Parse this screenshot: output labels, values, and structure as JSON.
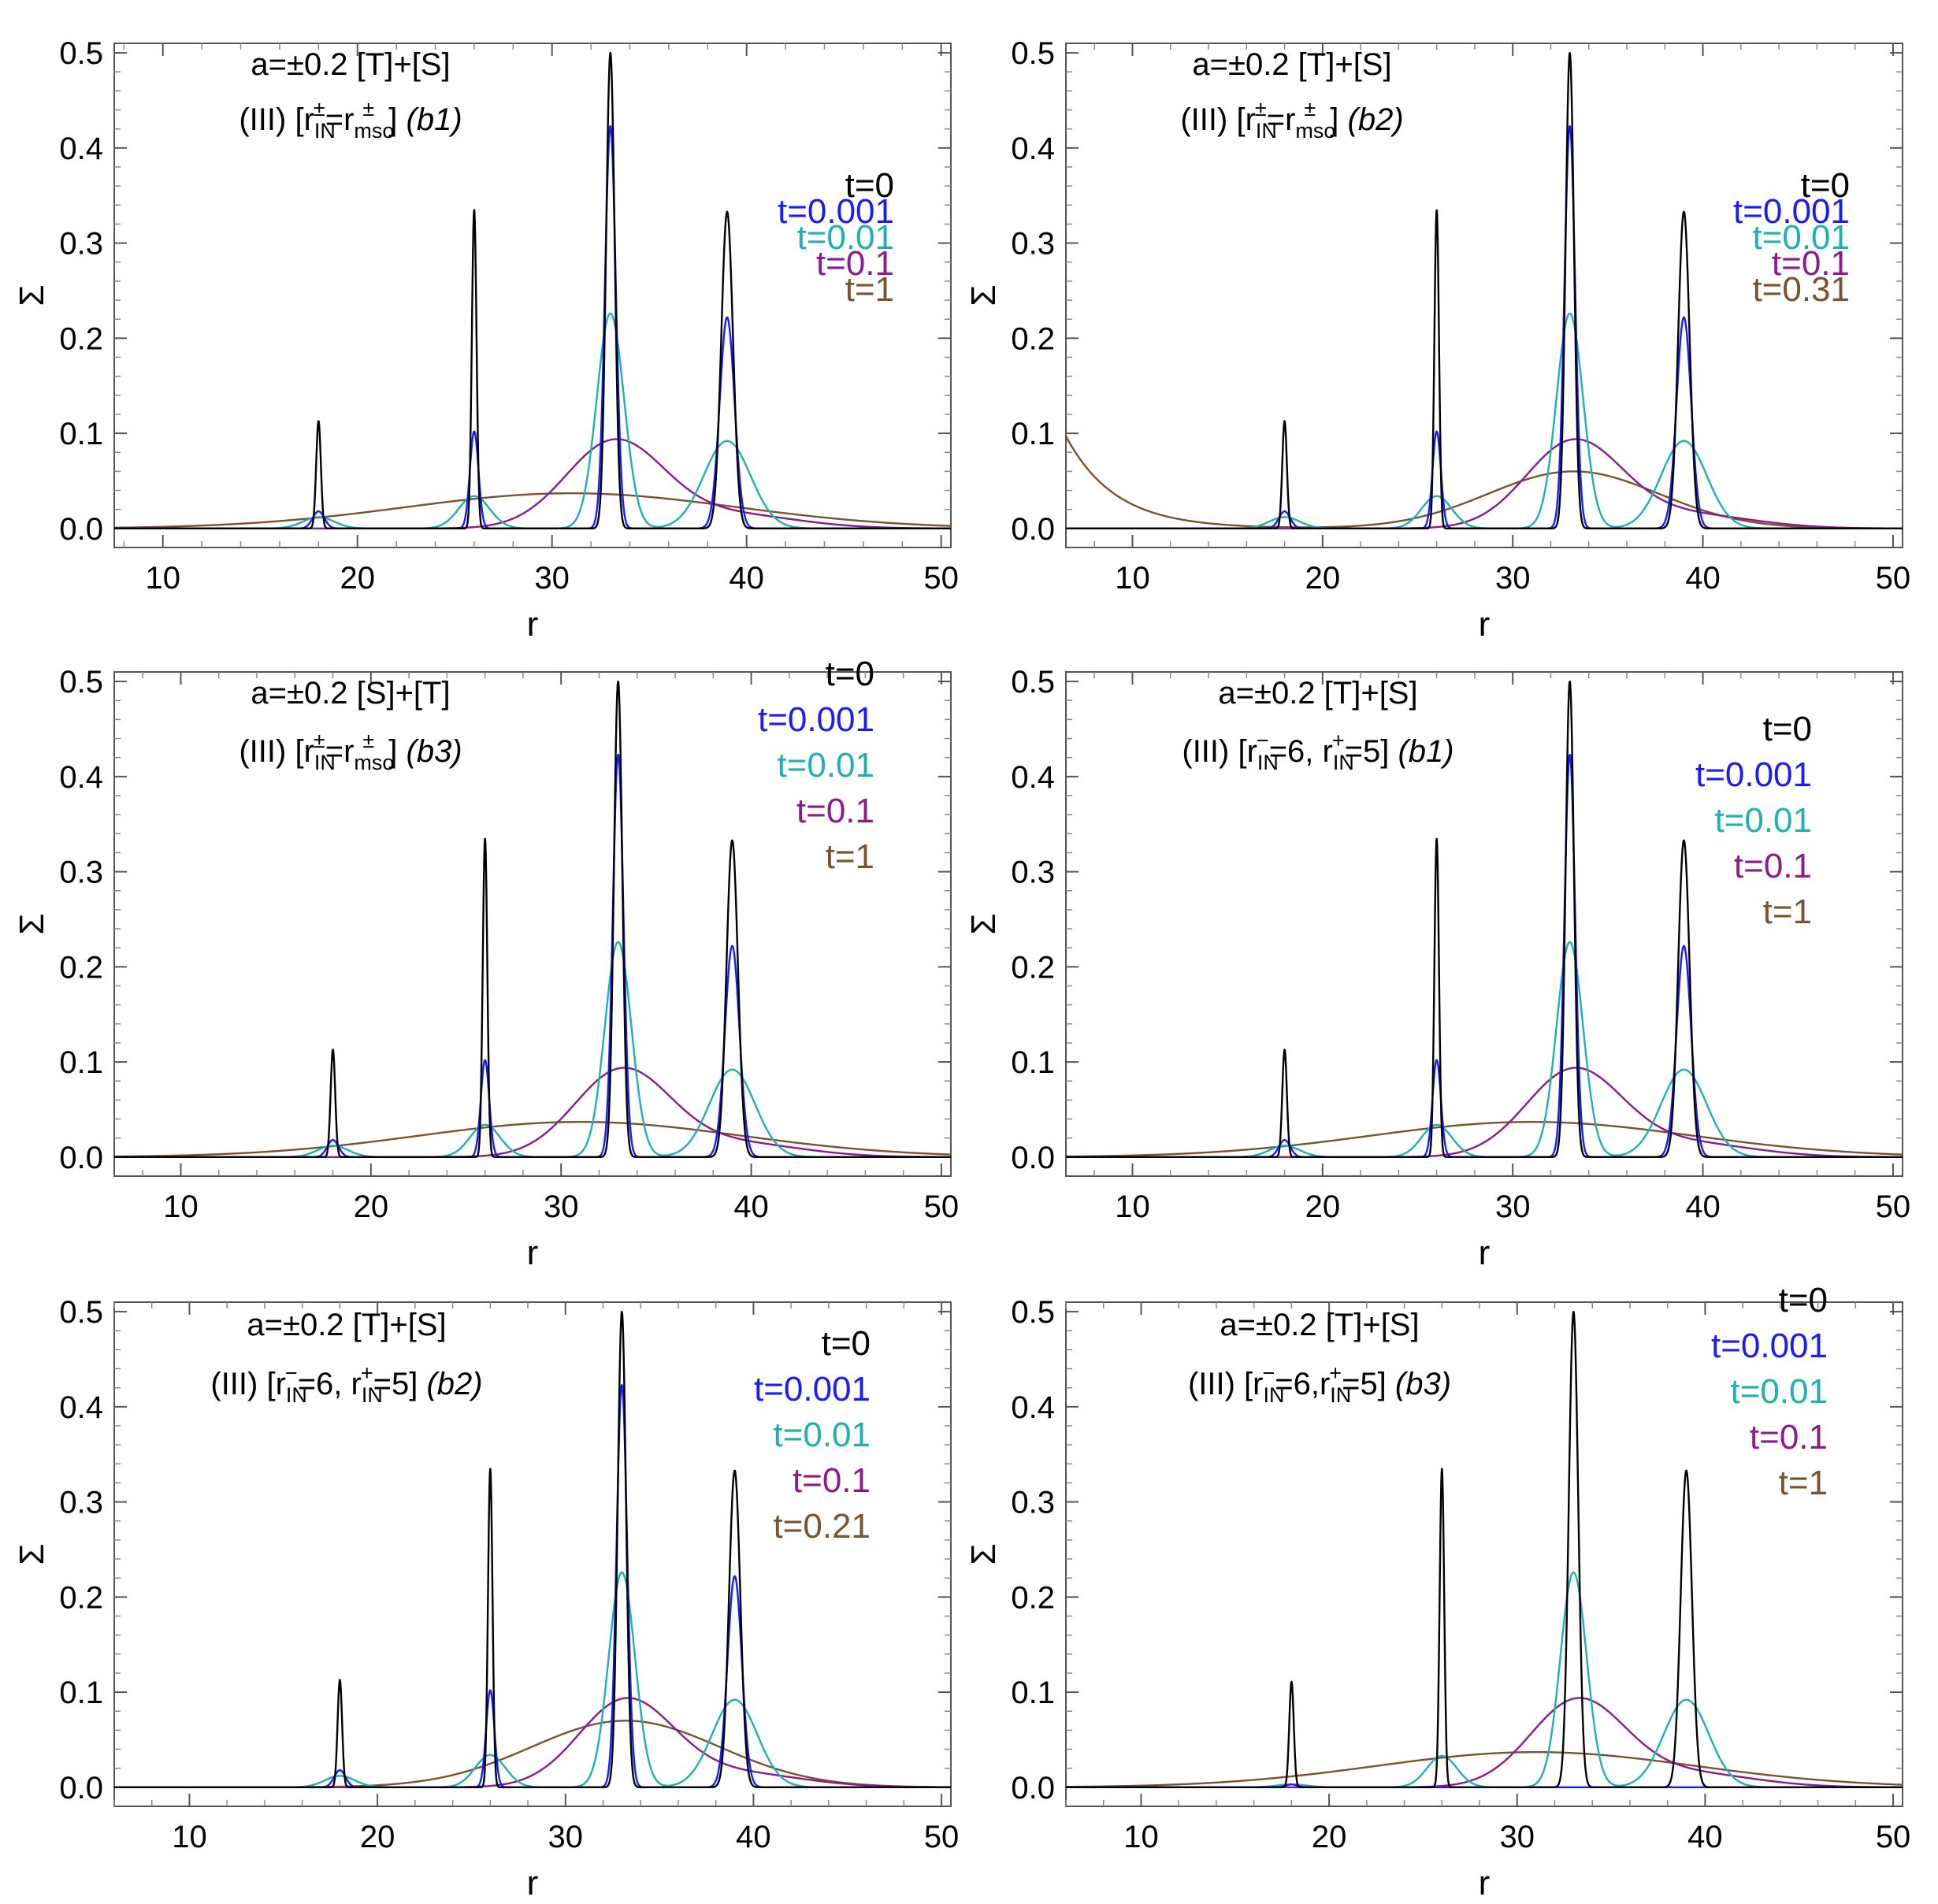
{
  "colors": {
    "t0": "#000000",
    "t0001": "#1a1aff",
    "t001": "#1fb0b0",
    "t01": "#8b1a8b",
    "t1": "#7a5230"
  },
  "chart_data": [
    {
      "type": "line",
      "title_line1": "a=±0.2 [T]+[S]",
      "title_line2": "(III) [r",
      "title_tail": "(b1)",
      "xlabel": "r",
      "ylabel": "Σ",
      "xlim": [
        7.5,
        50.5
      ],
      "ylim": [
        -0.02,
        0.51
      ],
      "xticks": [
        "10",
        "20",
        "30",
        "40",
        "50"
      ],
      "yticks": [
        "0.0",
        "0.1",
        "0.2",
        "0.3",
        "0.4",
        "0.5"
      ],
      "legend": [
        "t=0",
        "t=0.001",
        "t=0.01",
        "t=0.1",
        "t=1"
      ],
      "legend_position": "top-right",
      "series": [
        {
          "name": "t=0",
          "peaks": [
            [
              18,
              0.113,
              0.12
            ],
            [
              26,
              0.335,
              0.12
            ],
            [
              33,
              0.5,
              0.22
            ],
            [
              39,
              0.333,
              0.3
            ]
          ]
        },
        {
          "name": "t=0.001",
          "peaks": [
            [
              18,
              0.018,
              0.3
            ],
            [
              26,
              0.102,
              0.22
            ],
            [
              33,
              0.423,
              0.28
            ],
            [
              39,
              0.222,
              0.38
            ]
          ]
        },
        {
          "name": "t=0.01",
          "peaks": [
            [
              18,
              0.012,
              0.8
            ],
            [
              26,
              0.034,
              0.8
            ],
            [
              33,
              0.226,
              0.7
            ],
            [
              39,
              0.092,
              1.2
            ]
          ]
        },
        {
          "name": "t=0.1",
          "peaks": [
            [
              33.2,
              0.09,
              2.5
            ],
            [
              39,
              0.015,
              3.5
            ]
          ]
        },
        {
          "name": "t=1",
          "peaks": [
            [
              31,
              0.037,
              8.5
            ]
          ]
        }
      ]
    },
    {
      "type": "line",
      "title_line1": "a=±0.2 [T]+[S]",
      "title_line2": "(III) [r",
      "title_tail": "(b2)",
      "xlabel": "r",
      "ylabel": "Σ",
      "xlim": [
        6.5,
        50.5
      ],
      "ylim": [
        -0.02,
        0.51
      ],
      "xticks": [
        "10",
        "20",
        "30",
        "40",
        "50"
      ],
      "yticks": [
        "0.0",
        "0.1",
        "0.2",
        "0.3",
        "0.4",
        "0.5"
      ],
      "legend": [
        "t=0",
        "t=0.001",
        "t=0.01",
        "t=0.1",
        "t=0.31"
      ],
      "legend_position": "top-right",
      "series": [
        {
          "name": "t=0",
          "peaks": [
            [
              18,
              0.113,
              0.12
            ],
            [
              26,
              0.335,
              0.12
            ],
            [
              33,
              0.5,
              0.22
            ],
            [
              39,
              0.333,
              0.3
            ]
          ]
        },
        {
          "name": "t=0.001",
          "peaks": [
            [
              18,
              0.018,
              0.3
            ],
            [
              26,
              0.102,
              0.22
            ],
            [
              33,
              0.423,
              0.28
            ],
            [
              39,
              0.222,
              0.38
            ]
          ]
        },
        {
          "name": "t=0.01",
          "peaks": [
            [
              18,
              0.012,
              0.8
            ],
            [
              26,
              0.034,
              0.8
            ],
            [
              33,
              0.226,
              0.7
            ],
            [
              39,
              0.092,
              1.2
            ]
          ]
        },
        {
          "name": "t=0.1",
          "peaks": [
            [
              33.2,
              0.09,
              2.5
            ],
            [
              39,
              0.015,
              3.5
            ]
          ]
        },
        {
          "name": "t=0.31",
          "peaks": [
            [
              33.2,
              0.06,
              4.5
            ]
          ],
          "edge": [
            6.5,
            0.097,
            2.6
          ]
        }
      ]
    },
    {
      "type": "line",
      "title_line1": "a=±0.2 [S]+[T]",
      "title_line2": "(III) [r",
      "title_tail": "(b3)",
      "xlabel": "r",
      "ylabel": "Σ",
      "xlim": [
        6.5,
        50.5
      ],
      "ylim": [
        -0.02,
        0.51
      ],
      "xticks": [
        "10",
        "20",
        "30",
        "40",
        "50"
      ],
      "yticks": [
        "0.0",
        "0.1",
        "0.2",
        "0.3",
        "0.4",
        "0.5"
      ],
      "legend": [
        "t=0",
        "t=0.001",
        "t=0.01",
        "t=0.1",
        "t=1"
      ],
      "legend_position": "top-right",
      "series": [
        {
          "name": "t=0",
          "peaks": [
            [
              18,
              0.113,
              0.12
            ],
            [
              26,
              0.335,
              0.12
            ],
            [
              33,
              0.5,
              0.22
            ],
            [
              39,
              0.333,
              0.3
            ]
          ]
        },
        {
          "name": "t=0.001",
          "peaks": [
            [
              18,
              0.018,
              0.3
            ],
            [
              26,
              0.102,
              0.22
            ],
            [
              33,
              0.423,
              0.28
            ],
            [
              39,
              0.222,
              0.38
            ]
          ]
        },
        {
          "name": "t=0.01",
          "peaks": [
            [
              18,
              0.012,
              0.8
            ],
            [
              26,
              0.034,
              0.8
            ],
            [
              33,
              0.226,
              0.7
            ],
            [
              39,
              0.092,
              1.2
            ]
          ]
        },
        {
          "name": "t=0.1",
          "peaks": [
            [
              33.2,
              0.09,
              2.5
            ],
            [
              39,
              0.015,
              3.5
            ]
          ]
        },
        {
          "name": "t=1",
          "peaks": [
            [
              31,
              0.037,
              8.5
            ]
          ]
        }
      ]
    },
    {
      "type": "line",
      "title_line1": "a=±0.2 [T]+[S]",
      "title_line2": "(III) [r",
      "title_mid": "=6, r",
      "title_end": "=5]",
      "title_tail": "(b1)",
      "xlabel": "r",
      "ylabel": "Σ",
      "xlim": [
        6.5,
        50.5
      ],
      "ylim": [
        -0.02,
        0.51
      ],
      "xticks": [
        "10",
        "20",
        "30",
        "40",
        "50"
      ],
      "yticks": [
        "0.0",
        "0.1",
        "0.2",
        "0.3",
        "0.4",
        "0.5"
      ],
      "legend": [
        "t=0",
        "t=0.001",
        "t=0.01",
        "t=0.1",
        "t=1"
      ],
      "legend_position": "top-right",
      "series": [
        {
          "name": "t=0",
          "peaks": [
            [
              18,
              0.113,
              0.12
            ],
            [
              26,
              0.335,
              0.12
            ],
            [
              33,
              0.5,
              0.22
            ],
            [
              39,
              0.333,
              0.3
            ]
          ]
        },
        {
          "name": "t=0.001",
          "peaks": [
            [
              18,
              0.018,
              0.3
            ],
            [
              26,
              0.102,
              0.22
            ],
            [
              33,
              0.423,
              0.28
            ],
            [
              39,
              0.222,
              0.38
            ]
          ]
        },
        {
          "name": "t=0.01",
          "peaks": [
            [
              18,
              0.012,
              0.8
            ],
            [
              26,
              0.034,
              0.8
            ],
            [
              33,
              0.226,
              0.7
            ],
            [
              39,
              0.092,
              1.2
            ]
          ]
        },
        {
          "name": "t=0.1",
          "peaks": [
            [
              33.2,
              0.09,
              2.5
            ],
            [
              39,
              0.015,
              3.5
            ]
          ]
        },
        {
          "name": "t=1",
          "peaks": [
            [
              31,
              0.037,
              8.5
            ]
          ]
        }
      ]
    },
    {
      "type": "line",
      "title_line1": "a=±0.2  [T]+[S]",
      "title_line2": "(III) [r",
      "title_mid": "=6, r",
      "title_end": "=5]",
      "title_tail": "(b2)",
      "xlabel": "r",
      "ylabel": "Σ",
      "xlim": [
        6.0,
        50.5
      ],
      "ylim": [
        -0.02,
        0.51
      ],
      "xticks": [
        "10",
        "20",
        "30",
        "40",
        "50"
      ],
      "yticks": [
        "0.0",
        "0.1",
        "0.2",
        "0.3",
        "0.4",
        "0.5"
      ],
      "legend": [
        "t=0",
        "t=0.001",
        "t=0.01",
        "t=0.1",
        "t=0.21"
      ],
      "legend_position": "top-right",
      "series": [
        {
          "name": "t=0",
          "peaks": [
            [
              18,
              0.113,
              0.12
            ],
            [
              26,
              0.335,
              0.12
            ],
            [
              33,
              0.5,
              0.22
            ],
            [
              39,
              0.333,
              0.3
            ]
          ]
        },
        {
          "name": "t=0.001",
          "peaks": [
            [
              18,
              0.018,
              0.3
            ],
            [
              26,
              0.102,
              0.22
            ],
            [
              33,
              0.423,
              0.28
            ],
            [
              39,
              0.222,
              0.38
            ]
          ]
        },
        {
          "name": "t=0.01",
          "peaks": [
            [
              18,
              0.012,
              0.8
            ],
            [
              26,
              0.034,
              0.8
            ],
            [
              33,
              0.226,
              0.7
            ],
            [
              39,
              0.092,
              1.2
            ]
          ]
        },
        {
          "name": "t=0.1",
          "peaks": [
            [
              33.2,
              0.09,
              2.5
            ],
            [
              39,
              0.015,
              3.5
            ]
          ]
        },
        {
          "name": "t=0.21",
          "peaks": [
            [
              33.2,
              0.07,
              5.0
            ]
          ]
        }
      ]
    },
    {
      "type": "line",
      "title_line1": "a=±0.2 [T]+[S]",
      "title_line2": "(III) [r",
      "title_mid": "=6,r",
      "title_end": "=5]",
      "title_tail": "(b3)",
      "xlabel": "r",
      "ylabel": "Σ",
      "xlim": [
        6.0,
        50.5
      ],
      "ylim": [
        -0.02,
        0.51
      ],
      "xticks": [
        "10",
        "20",
        "30",
        "40",
        "50"
      ],
      "yticks": [
        "0.0",
        "0.1",
        "0.2",
        "0.3",
        "0.4",
        "0.5"
      ],
      "legend": [
        "t=0",
        "t=0.001",
        "t=0.01",
        "t=0.1",
        "t=1"
      ],
      "legend_position": "top-right",
      "series": [
        {
          "name": "t=0",
          "peaks": [
            [
              18,
              0.111,
              0.12
            ],
            [
              26,
              0.335,
              0.12
            ],
            [
              33,
              0.5,
              0.25
            ],
            [
              39,
              0.333,
              0.3
            ]
          ]
        },
        {
          "name": "t=0.001",
          "peaks": [
            [
              18,
              0.003,
              0.3
            ]
          ]
        },
        {
          "name": "t=0.01",
          "peaks": [
            [
              18,
              0.003,
              0.8
            ],
            [
              26,
              0.033,
              0.8
            ],
            [
              33,
              0.226,
              0.7
            ],
            [
              39,
              0.092,
              1.2
            ]
          ]
        },
        {
          "name": "t=0.1",
          "peaks": [
            [
              33.2,
              0.09,
              2.5
            ],
            [
              39,
              0.015,
              3.5
            ]
          ]
        },
        {
          "name": "t=1",
          "peaks": [
            [
              31,
              0.037,
              8.5
            ]
          ]
        }
      ]
    }
  ]
}
